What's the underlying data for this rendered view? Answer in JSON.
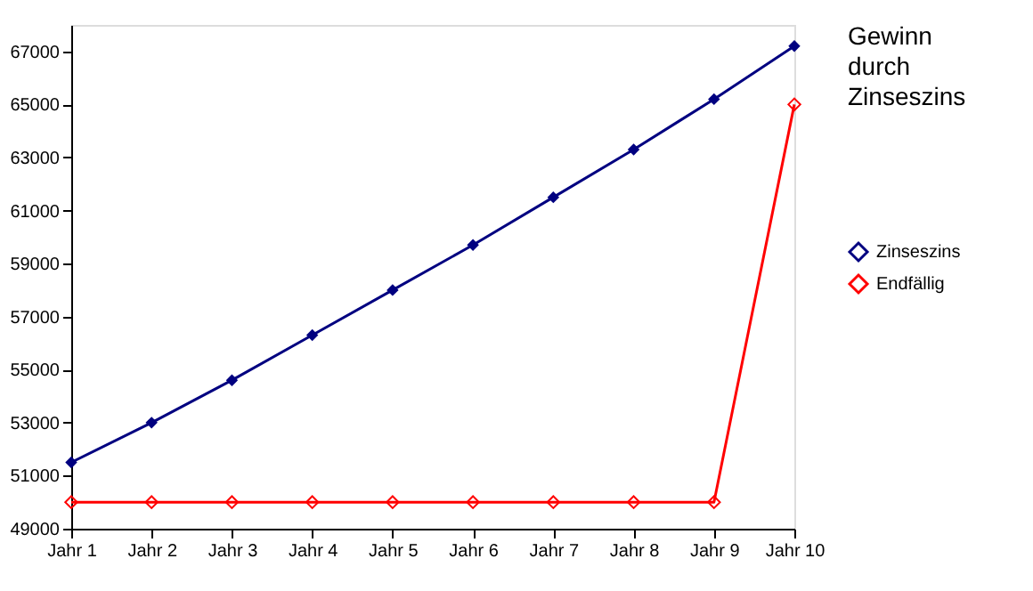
{
  "chart_data": {
    "type": "line",
    "categories": [
      "Jahr 1",
      "Jahr 2",
      "Jahr 3",
      "Jahr 4",
      "Jahr 5",
      "Jahr 6",
      "Jahr 7",
      "Jahr 8",
      "Jahr 9",
      "Jahr 10"
    ],
    "series": [
      {
        "name": "Zinseszins",
        "color": "#000080",
        "values": [
          51500,
          53000,
          54600,
          56300,
          58000,
          59700,
          61500,
          63300,
          65200,
          67200
        ]
      },
      {
        "name": "Endfällig",
        "color": "#ff0000",
        "values": [
          50000,
          50000,
          50000,
          50000,
          50000,
          50000,
          50000,
          50000,
          50000,
          65000
        ]
      }
    ],
    "ylim": [
      49000,
      68000
    ],
    "yticks": [
      49000,
      51000,
      53000,
      55000,
      57000,
      59000,
      61000,
      63000,
      65000,
      67000
    ],
    "annotations": [
      "Gewinn durch Zinseszins"
    ],
    "marker": "diamond",
    "line_style": "solid",
    "grid": false,
    "legend": "right"
  }
}
